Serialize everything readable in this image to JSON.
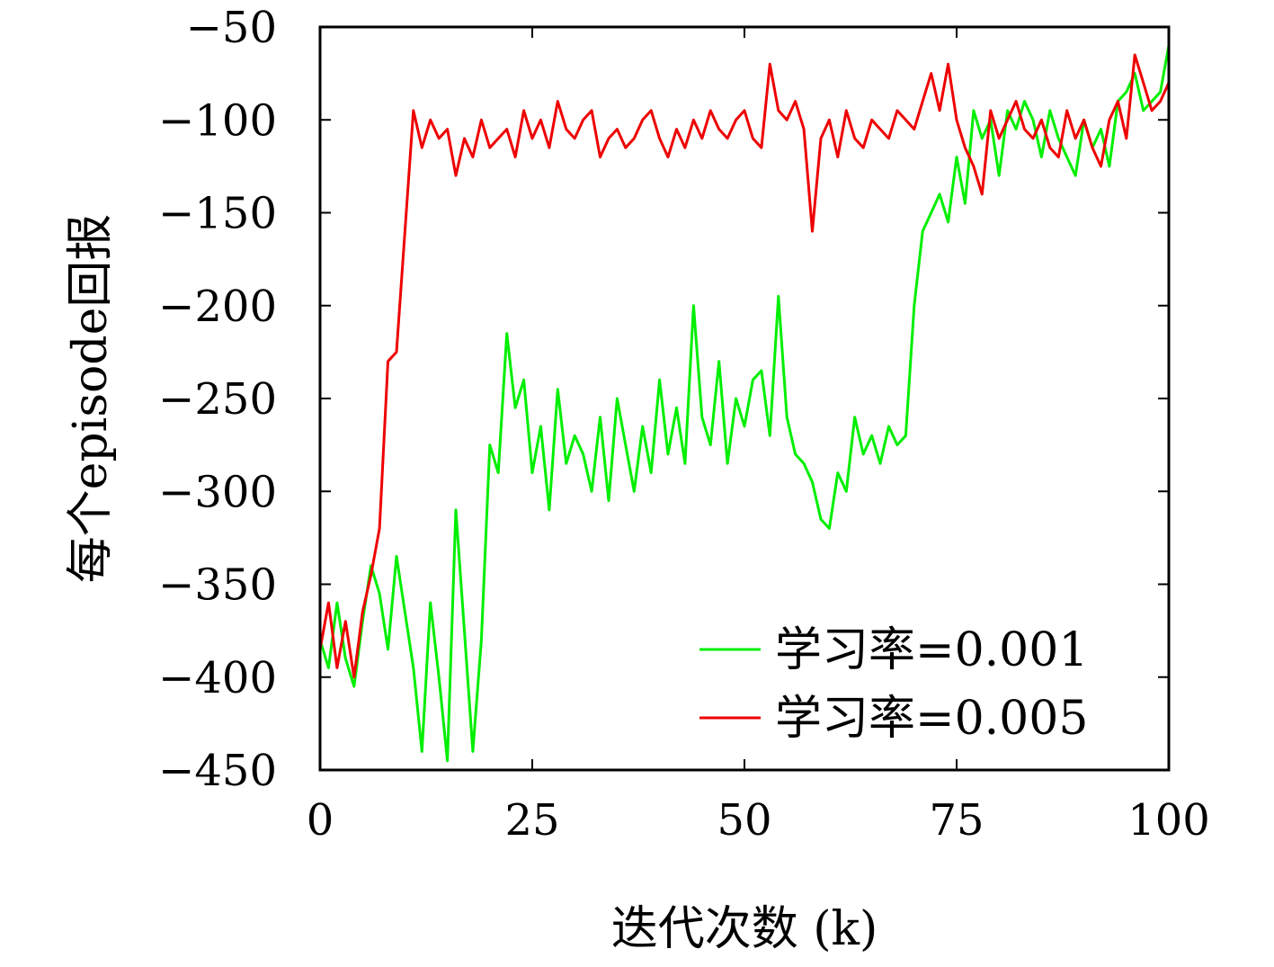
{
  "chart_data": {
    "type": "line",
    "xlabel": "迭代次数 (k)",
    "ylabel": "每个episode回报",
    "xlim": [
      0,
      100
    ],
    "ylim": [
      -450,
      -50
    ],
    "xticks": [
      0,
      25,
      50,
      75,
      100
    ],
    "xtick_labels": [
      "0",
      "25",
      "50",
      "75",
      "100"
    ],
    "yticks": [
      -50,
      -100,
      -150,
      -200,
      -250,
      -300,
      -350,
      -400,
      -450
    ],
    "ytick_labels": [
      "−50",
      "−100",
      "−150",
      "−200",
      "−250",
      "−300",
      "−350",
      "−400",
      "−450"
    ],
    "grid": false,
    "legend_position": "bottom-right",
    "series": [
      {
        "name": "学习率=0.001",
        "color": "#00ee00",
        "x": [
          0,
          1,
          2,
          3,
          4,
          5,
          6,
          7,
          8,
          9,
          10,
          11,
          12,
          13,
          14,
          15,
          16,
          17,
          18,
          19,
          20,
          21,
          22,
          23,
          24,
          25,
          26,
          27,
          28,
          29,
          30,
          31,
          32,
          33,
          34,
          35,
          36,
          37,
          38,
          39,
          40,
          41,
          42,
          43,
          44,
          45,
          46,
          47,
          48,
          49,
          50,
          51,
          52,
          53,
          54,
          55,
          56,
          57,
          58,
          59,
          60,
          61,
          62,
          63,
          64,
          65,
          66,
          67,
          68,
          69,
          70,
          71,
          72,
          73,
          74,
          75,
          76,
          77,
          78,
          79,
          80,
          81,
          82,
          83,
          84,
          85,
          86,
          87,
          88,
          89,
          90,
          91,
          92,
          93,
          94,
          95,
          96,
          97,
          98,
          99,
          100
        ],
        "y": [
          -380,
          -395,
          -360,
          -390,
          -405,
          -370,
          -340,
          -355,
          -385,
          -335,
          -365,
          -395,
          -440,
          -360,
          -400,
          -445,
          -310,
          -375,
          -440,
          -380,
          -275,
          -290,
          -215,
          -255,
          -240,
          -290,
          -265,
          -310,
          -245,
          -285,
          -270,
          -280,
          -300,
          -260,
          -305,
          -250,
          -275,
          -300,
          -265,
          -290,
          -240,
          -280,
          -255,
          -285,
          -200,
          -260,
          -275,
          -230,
          -285,
          -250,
          -265,
          -240,
          -235,
          -270,
          -195,
          -260,
          -280,
          -285,
          -295,
          -315,
          -320,
          -290,
          -300,
          -260,
          -280,
          -270,
          -285,
          -265,
          -275,
          -270,
          -200,
          -160,
          -150,
          -140,
          -155,
          -120,
          -145,
          -95,
          -110,
          -100,
          -130,
          -95,
          -105,
          -90,
          -100,
          -120,
          -95,
          -110,
          -120,
          -130,
          -100,
          -115,
          -105,
          -125,
          -90,
          -85,
          -75,
          -95,
          -90,
          -85,
          -60
        ]
      },
      {
        "name": "学习率=0.005",
        "color": "#ee0000",
        "x": [
          0,
          1,
          2,
          3,
          4,
          5,
          6,
          7,
          8,
          9,
          10,
          11,
          12,
          13,
          14,
          15,
          16,
          17,
          18,
          19,
          20,
          21,
          22,
          23,
          24,
          25,
          26,
          27,
          28,
          29,
          30,
          31,
          32,
          33,
          34,
          35,
          36,
          37,
          38,
          39,
          40,
          41,
          42,
          43,
          44,
          45,
          46,
          47,
          48,
          49,
          50,
          51,
          52,
          53,
          54,
          55,
          56,
          57,
          58,
          59,
          60,
          61,
          62,
          63,
          64,
          65,
          66,
          67,
          68,
          69,
          70,
          71,
          72,
          73,
          74,
          75,
          76,
          77,
          78,
          79,
          80,
          81,
          82,
          83,
          84,
          85,
          86,
          87,
          88,
          89,
          90,
          91,
          92,
          93,
          94,
          95,
          96,
          97,
          98,
          99,
          100
        ],
        "y": [
          -385,
          -360,
          -395,
          -370,
          -400,
          -365,
          -345,
          -320,
          -230,
          -225,
          -160,
          -95,
          -115,
          -100,
          -110,
          -105,
          -130,
          -110,
          -120,
          -100,
          -115,
          -110,
          -105,
          -120,
          -95,
          -110,
          -100,
          -115,
          -90,
          -105,
          -110,
          -100,
          -95,
          -120,
          -110,
          -105,
          -115,
          -110,
          -100,
          -95,
          -110,
          -120,
          -105,
          -115,
          -100,
          -110,
          -95,
          -105,
          -110,
          -100,
          -95,
          -110,
          -115,
          -70,
          -95,
          -100,
          -90,
          -105,
          -160,
          -110,
          -100,
          -120,
          -95,
          -110,
          -115,
          -100,
          -105,
          -110,
          -95,
          -100,
          -105,
          -90,
          -75,
          -95,
          -70,
          -100,
          -115,
          -125,
          -140,
          -95,
          -110,
          -100,
          -90,
          -105,
          -110,
          -100,
          -115,
          -120,
          -95,
          -110,
          -100,
          -115,
          -125,
          -100,
          -90,
          -110,
          -65,
          -80,
          -95,
          -90,
          -80
        ]
      }
    ]
  }
}
